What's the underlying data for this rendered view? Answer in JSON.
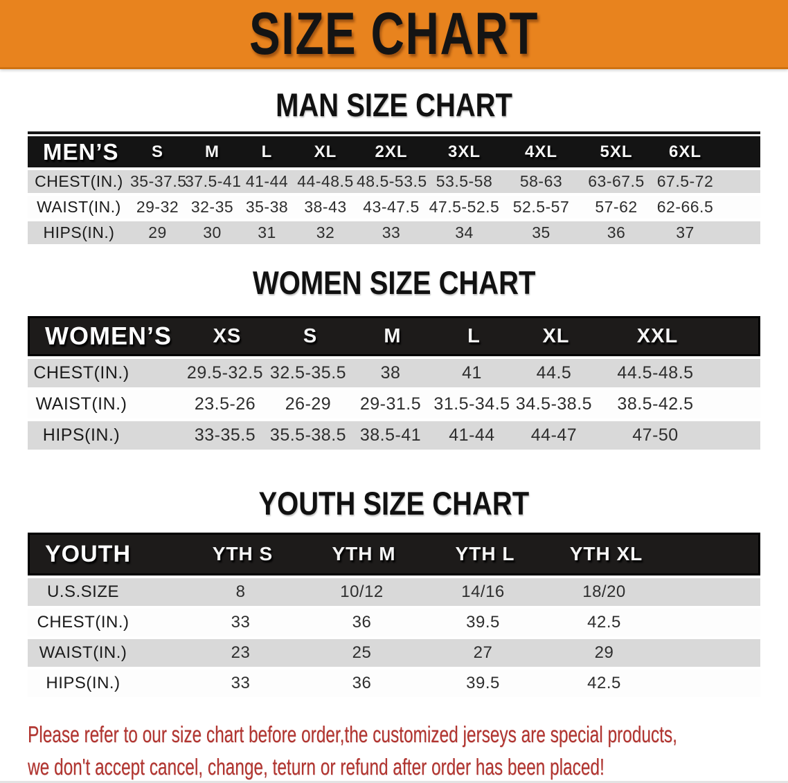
{
  "banner": {
    "title": "SIZE CHART",
    "bg_color": "#e8831e",
    "text_color": "#141414"
  },
  "sections": {
    "men": {
      "title": "MAN SIZE CHART",
      "header": [
        "MEN’S",
        "S",
        "M",
        "L",
        "XL",
        "2XL",
        "3XL",
        "4XL",
        "5XL",
        "6XL"
      ],
      "rows": [
        {
          "label": "CHEST(IN.)",
          "values": [
            "35-37.5",
            "37.5-41",
            "41-44",
            "44-48.5",
            "48.5-53.5",
            "53.5-58",
            "58-63",
            "63-67.5",
            "67.5-72"
          ]
        },
        {
          "label": "WAIST(IN.)",
          "values": [
            "29-32",
            "32-35",
            "35-38",
            "38-43",
            "43-47.5",
            "47.5-52.5",
            "52.5-57",
            "57-62",
            "62-66.5"
          ]
        },
        {
          "label": "HIPS(IN.)",
          "values": [
            "29",
            "30",
            "31",
            "32",
            "33",
            "34",
            "35",
            "36",
            "37"
          ]
        }
      ]
    },
    "women": {
      "title": "WOMEN SIZE CHART",
      "header": [
        "WOMEN’S",
        "XS",
        "S",
        "M",
        "L",
        "XL",
        "XXL"
      ],
      "rows": [
        {
          "label": "CHEST(IN.)",
          "values": [
            "29.5-32.5",
            "32.5-35.5",
            "38",
            "41",
            "44.5",
            "44.5-48.5"
          ]
        },
        {
          "label": "WAIST(IN.)",
          "values": [
            "23.5-26",
            "26-29",
            "29-31.5",
            "31.5-34.5",
            "34.5-38.5",
            "38.5-42.5"
          ]
        },
        {
          "label": "HIPS(IN.)",
          "values": [
            "33-35.5",
            "35.5-38.5",
            "38.5-41",
            "41-44",
            "44-47",
            "47-50"
          ]
        }
      ]
    },
    "youth": {
      "title": "YOUTH SIZE CHART",
      "header": [
        "YOUTH",
        "YTH S",
        "YTH M",
        "YTH L",
        "YTH XL"
      ],
      "rows": [
        {
          "label": "U.S.SIZE",
          "values": [
            "8",
            "10/12",
            "14/16",
            "18/20"
          ]
        },
        {
          "label": "CHEST(IN.)",
          "values": [
            "33",
            "36",
            "39.5",
            "42.5"
          ]
        },
        {
          "label": "WAIST(IN.)",
          "values": [
            "23",
            "25",
            "27",
            "29"
          ]
        },
        {
          "label": "HIPS(IN.)",
          "values": [
            "33",
            "36",
            "39.5",
            "42.5"
          ]
        }
      ]
    }
  },
  "footnote": {
    "color": "#b23530",
    "line1": "Please refer to our size chart before order,the customized jerseys are special products,",
    "line2": "we don't accept cancel, change, teturn or refund after order has been placed!"
  }
}
